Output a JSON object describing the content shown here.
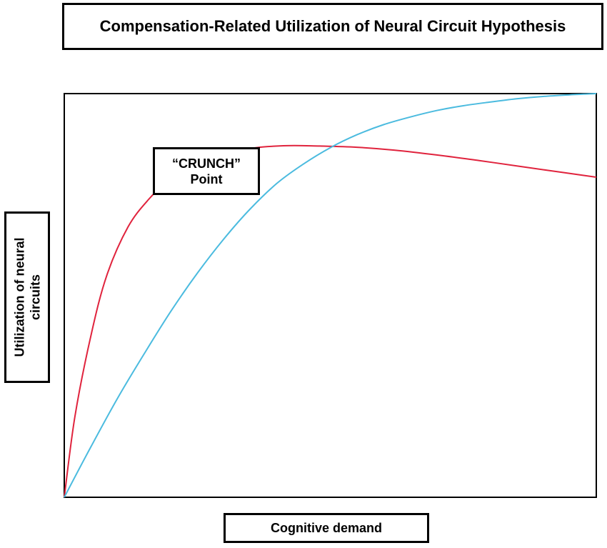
{
  "chart_data": {
    "type": "line",
    "title": "Compensation-Related Utilization of Neural Circuit Hypothesis",
    "xlabel": "Cognitive demand",
    "ylabel_lines": [
      "Utilization of neural",
      "circuits"
    ],
    "annotation_lines": [
      "“CRUNCH”",
      "Point"
    ],
    "xlim": [
      0,
      100
    ],
    "ylim": [
      0,
      100
    ],
    "grid": false,
    "legend": "none",
    "series": [
      {
        "color": "#e0233d",
        "x": [
          0,
          2,
          5,
          8,
          12,
          16,
          20,
          25,
          30,
          36,
          42,
          48,
          55,
          62,
          70,
          78,
          86,
          93,
          100
        ],
        "y": [
          0,
          20,
          40,
          55,
          67,
          74,
          79,
          83,
          85,
          86.6,
          87.1,
          87,
          86.7,
          86,
          84.8,
          83.4,
          81.9,
          80.6,
          79.3
        ]
      },
      {
        "color": "#4bbbdf",
        "x": [
          0,
          5,
          10,
          15,
          20,
          25,
          30,
          35,
          40,
          45,
          50,
          55,
          60,
          65,
          70,
          75,
          80,
          85,
          90,
          95,
          100
        ],
        "y": [
          0,
          12.5,
          24.5,
          35.5,
          46,
          55.5,
          64,
          71.5,
          77.8,
          82.6,
          86.6,
          89.8,
          92.3,
          94.2,
          95.8,
          97,
          97.9,
          98.7,
          99.3,
          99.7,
          100
        ]
      }
    ]
  }
}
